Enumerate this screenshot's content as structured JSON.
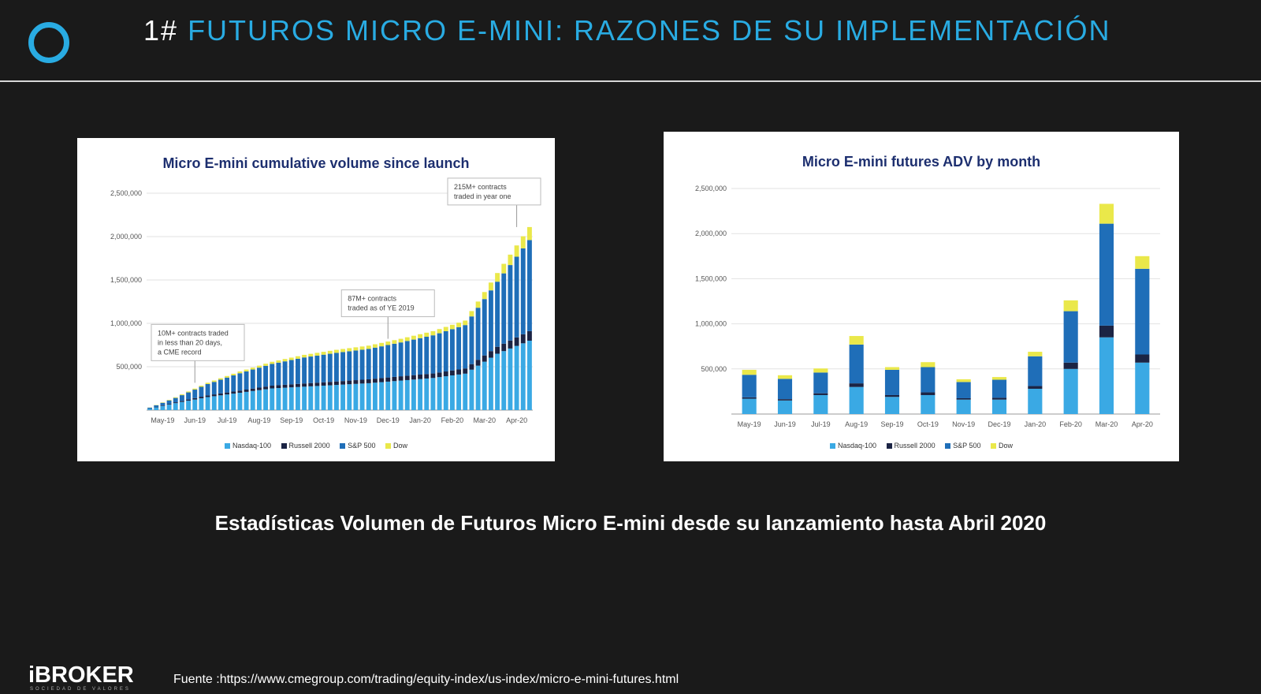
{
  "header": {
    "number": "1#",
    "title": "FUTUROS MICRO E-MINI: RAZONES DE SU IMPLEMENTACIÓN"
  },
  "caption": "Estadísticas Volumen de Futuros Micro E-mini desde su lanzamiento hasta Abril 2020",
  "footer": {
    "brand": "iBROKER",
    "brand_sub": "SOCIEDAD DE VALORES",
    "source": "Fuente :https://www.cmegroup.com/trading/equity-index/us-index/micro-e-mini-futures.html"
  },
  "colors": {
    "nasdaq": "#3aa9e4",
    "russell": "#1b2444",
    "sp500": "#1f6eb8",
    "dow": "#eae84a",
    "accent": "#29abe2"
  },
  "chart_data": [
    {
      "type": "bar",
      "stacked": true,
      "title": "Micro E-mini cumulative volume since launch",
      "categories": [
        "May-19",
        "Jun-19",
        "Jul-19",
        "Aug-19",
        "Sep-19",
        "Oct-19",
        "Nov-19",
        "Dec-19",
        "Jan-20",
        "Feb-20",
        "Mar-20",
        "Apr-20"
      ],
      "ylim": [
        0,
        2500000
      ],
      "yticks": [
        "2,500,000",
        "2,000,000",
        "1,500,000",
        "1,000,000",
        "500,000"
      ],
      "bars_per_period": 5,
      "series": [
        {
          "name": "Nasdaq-100",
          "color": "#3aa9e4",
          "values": [
            80000,
            150000,
            200000,
            250000,
            270000,
            290000,
            310000,
            340000,
            370000,
            420000,
            650000,
            800000
          ]
        },
        {
          "name": "Russell 2000",
          "color": "#1b2444",
          "values": [
            10000,
            20000,
            25000,
            32000,
            37000,
            40000,
            45000,
            50000,
            52000,
            60000,
            80000,
            110000
          ]
        },
        {
          "name": "S&P 500",
          "color": "#1f6eb8",
          "values": [
            50000,
            130000,
            200000,
            250000,
            300000,
            330000,
            350000,
            390000,
            440000,
            500000,
            750000,
            1050000
          ]
        },
        {
          "name": "Dow",
          "color": "#eae84a",
          "values": [
            8000,
            15000,
            20000,
            25000,
            30000,
            35000,
            38000,
            42000,
            48000,
            52000,
            100000,
            150000
          ]
        }
      ],
      "annotations": [
        {
          "text": [
            "10M+ contracts traded",
            "in less than 20 days,",
            "a CME record"
          ],
          "period": 1
        },
        {
          "text": [
            "87M+ contracts",
            "traded as of YE 2019"
          ],
          "period": 7
        },
        {
          "text": [
            "215M+ contracts",
            "traded in year one"
          ],
          "period": 11
        }
      ],
      "legend": [
        "Nasdaq-100",
        "Russell 2000",
        "S&P 500",
        "Dow"
      ],
      "legend_position": "bottom"
    },
    {
      "type": "bar",
      "stacked": true,
      "title": "Micro E-mini futures ADV by month",
      "categories": [
        "May-19",
        "Jun-19",
        "Jul-19",
        "Aug-19",
        "Sep-19",
        "Oct-19",
        "Nov-19",
        "Dec-19",
        "Jan-20",
        "Feb-20",
        "Mar-20",
        "Apr-20"
      ],
      "ylim": [
        0,
        2500000
      ],
      "yticks": [
        "2,500,000",
        "2,000,000",
        "1,500,000",
        "1,000,000",
        "500,000"
      ],
      "series": [
        {
          "name": "Nasdaq-100",
          "color": "#3aa9e4",
          "values": [
            170000,
            150000,
            210000,
            300000,
            190000,
            210000,
            160000,
            160000,
            280000,
            500000,
            850000,
            570000
          ]
        },
        {
          "name": "Russell 2000",
          "color": "#1b2444",
          "values": [
            15000,
            15000,
            20000,
            40000,
            20000,
            30000,
            15000,
            20000,
            30000,
            70000,
            130000,
            90000
          ]
        },
        {
          "name": "S&P 500",
          "color": "#1f6eb8",
          "values": [
            250000,
            225000,
            230000,
            430000,
            280000,
            280000,
            180000,
            200000,
            330000,
            570000,
            1130000,
            950000
          ]
        },
        {
          "name": "Dow",
          "color": "#eae84a",
          "values": [
            55000,
            40000,
            45000,
            95000,
            30000,
            55000,
            30000,
            30000,
            50000,
            120000,
            220000,
            140000
          ]
        }
      ],
      "legend": [
        "Nasdaq-100",
        "Russell 2000",
        "S&P 500",
        "Dow"
      ],
      "legend_position": "bottom"
    }
  ]
}
